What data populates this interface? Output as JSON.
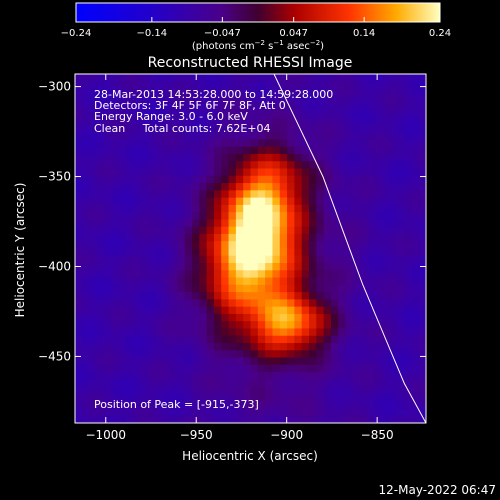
{
  "chart_data": {
    "type": "heatmap",
    "title": "Reconstructed RHESSI Image",
    "xlabel": "Heliocentric X (arcsec)",
    "ylabel": "Heliocentric Y (arcsec)",
    "xlim": [
      -1017,
      -823
    ],
    "ylim": [
      -487,
      -293
    ],
    "x_ticks": [
      -1000,
      -950,
      -900,
      -850
    ],
    "y_ticks": [
      -300,
      -350,
      -400,
      -450
    ],
    "x_tick_labels": [
      "−1000",
      "−950",
      "−900",
      "−850"
    ],
    "y_tick_labels": [
      "−300",
      "−350",
      "−400",
      "−450"
    ],
    "colorbar": {
      "range": [
        -0.24,
        0.24
      ],
      "ticks": [
        -0.24,
        -0.14,
        -0.047,
        0.047,
        0.14,
        0.24
      ],
      "tick_labels": [
        "−0.24",
        "−0.14",
        "−0.047",
        "0.047",
        "0.14",
        "0.24"
      ],
      "unit_base": "(photons cm",
      "unit_sup1": "−2",
      "unit_mid1": " s",
      "unit_sup2": "−1",
      "unit_mid2": " asec",
      "unit_sup3": "−2",
      "unit_end": ")"
    },
    "sources": [
      {
        "x": -915,
        "y": -373,
        "sx": 14,
        "sy": 22,
        "amp": 0.24
      },
      {
        "x": -925,
        "y": -400,
        "sx": 17,
        "sy": 22,
        "amp": 0.17
      },
      {
        "x": -898,
        "y": -432,
        "sx": 14,
        "sy": 11,
        "amp": 0.19
      },
      {
        "x": -908,
        "y": -405,
        "sx": 26,
        "sy": 50,
        "amp": 0.08
      },
      {
        "x": -900,
        "y": -350,
        "sx": 12,
        "sy": 12,
        "amp": 0.05
      }
    ],
    "limb": [
      [
        -907,
        -293
      ],
      [
        -880,
        -350
      ],
      [
        -858,
        -410
      ],
      [
        -835,
        -465
      ],
      [
        -823,
        -487
      ]
    ],
    "annotations": {
      "time_range": "28-Mar-2013 14:53:28.000 to 14:59:28.000",
      "detectors": "Detectors: 3F 4F 5F 6F 7F 8F, Att 0",
      "energy": "Energy Range: 3.0 - 6.0 keV",
      "clean": "Clean     Total counts: 7.62E+04",
      "peak": "Position of Peak = [-915,-373]"
    },
    "timestamp": "12-May-2022 06:47"
  }
}
